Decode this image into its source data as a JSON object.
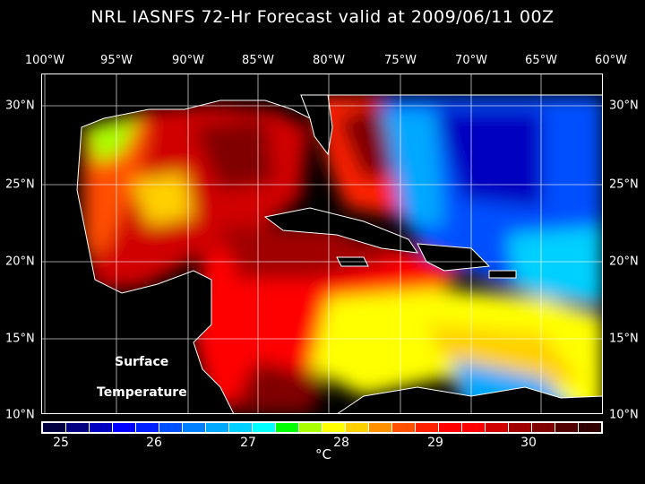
{
  "title": "NRL IASNFS  72-Hr Forecast valid at 2009/06/11 00Z",
  "lon_labels": [
    "100°W",
    "95°W",
    "90°W",
    "85°W",
    "80°W",
    "75°W",
    "70°W",
    "65°W",
    "60°W"
  ],
  "lat_labels": [
    "30°N",
    "25°N",
    "20°N",
    "15°N",
    "10°N"
  ],
  "map_text": {
    "line1": "Surface",
    "line2": "Temperature"
  },
  "colorbar": {
    "ticks": [
      "25",
      "26",
      "27",
      "28",
      "29",
      "30"
    ],
    "unit": "°C",
    "colors": [
      "#000040",
      "#000080",
      "#0000c0",
      "#0000ff",
      "#0020ff",
      "#0050ff",
      "#0080ff",
      "#00a8ff",
      "#00d0ff",
      "#00ffff",
      "#00ff00",
      "#a8ff00",
      "#ffff00",
      "#ffd000",
      "#ff9000",
      "#ff5000",
      "#ff2000",
      "#ff0000",
      "#ff0000",
      "#d00000",
      "#a00000",
      "#800000",
      "#500000",
      "#300000"
    ]
  }
}
